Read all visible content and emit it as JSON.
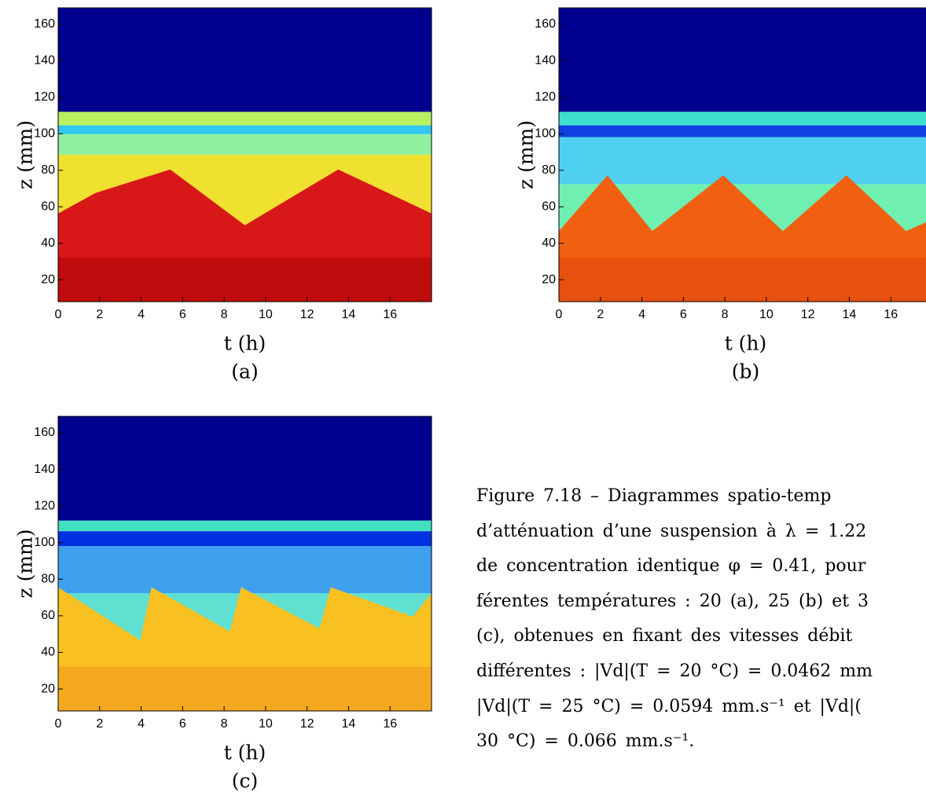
{
  "panels": [
    {
      "label": "(a)",
      "xlabel": "t (h)",
      "ylabel": "z (mm)",
      "xlim": [
        0,
        18
      ],
      "ylim": [
        8,
        169
      ],
      "xticks": [
        0,
        2,
        4,
        6,
        8,
        10,
        12,
        14,
        16
      ],
      "yticks": [
        20,
        40,
        60,
        80,
        100,
        120,
        140,
        160
      ]
    },
    {
      "label": "(b)",
      "xlabel": "t (h)",
      "ylabel": "z (mm)",
      "xlim": [
        0,
        18
      ],
      "ylim": [
        8,
        169
      ],
      "xticks": [
        0,
        2,
        4,
        6,
        8,
        10,
        12,
        14,
        16
      ],
      "yticks": [
        20,
        40,
        60,
        80,
        100,
        120,
        140,
        160
      ]
    },
    {
      "label": "(c)",
      "xlabel": "t (h)",
      "ylabel": "z (mm)",
      "xlim": [
        0,
        18
      ],
      "ylim": [
        8,
        169
      ],
      "xticks": [
        0,
        2,
        4,
        6,
        8,
        10,
        12,
        14,
        16
      ],
      "yticks": [
        20,
        40,
        60,
        80,
        100,
        120,
        140,
        160
      ]
    }
  ],
  "caption": {
    "lines": [
      "Figure 7.18 – Diagrammes spatio-temp",
      "d’atténuation d’une suspension à λ = 1.22",
      "de concentration identique φ = 0.41, pour",
      "férentes températures : 20 (a), 25 (b) et 3",
      "(c), obtenues en fixant des vitesses débit",
      "différentes : |Vd|(T = 20 °C) = 0.0462 mm",
      "|Vd|(T = 25 °C) = 0.0594 mm.s⁻¹ et |Vd|(",
      "30 °C) = 0.066 mm.s⁻¹."
    ]
  }
}
